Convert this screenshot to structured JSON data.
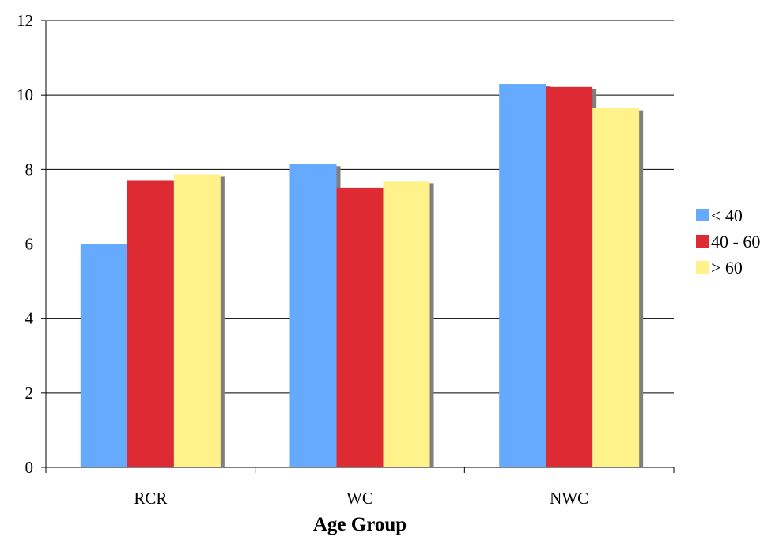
{
  "colors": {
    "series_lt40": "#66aaff",
    "series_40_60": "#dd2a33",
    "series_gt60": "#fff28a",
    "shadow": "#7f7f7f",
    "gridline": "#000000",
    "axis": "#000000"
  },
  "chart_data": {
    "type": "bar",
    "title": "",
    "xlabel": "Age Group",
    "ylabel": "",
    "ylim": [
      0,
      12
    ],
    "yticks": [
      "0",
      "2",
      "4",
      "6",
      "8",
      "10",
      "12"
    ],
    "grid": true,
    "legend_position": "right",
    "categories": [
      "RCR",
      "WC",
      "NWC"
    ],
    "series": [
      {
        "name": "< 40",
        "values": [
          6.0,
          8.15,
          10.3
        ]
      },
      {
        "name": "40 - 60",
        "values": [
          7.7,
          7.5,
          10.22
        ]
      },
      {
        "name": "> 60",
        "values": [
          7.87,
          7.68,
          9.65
        ]
      }
    ]
  }
}
